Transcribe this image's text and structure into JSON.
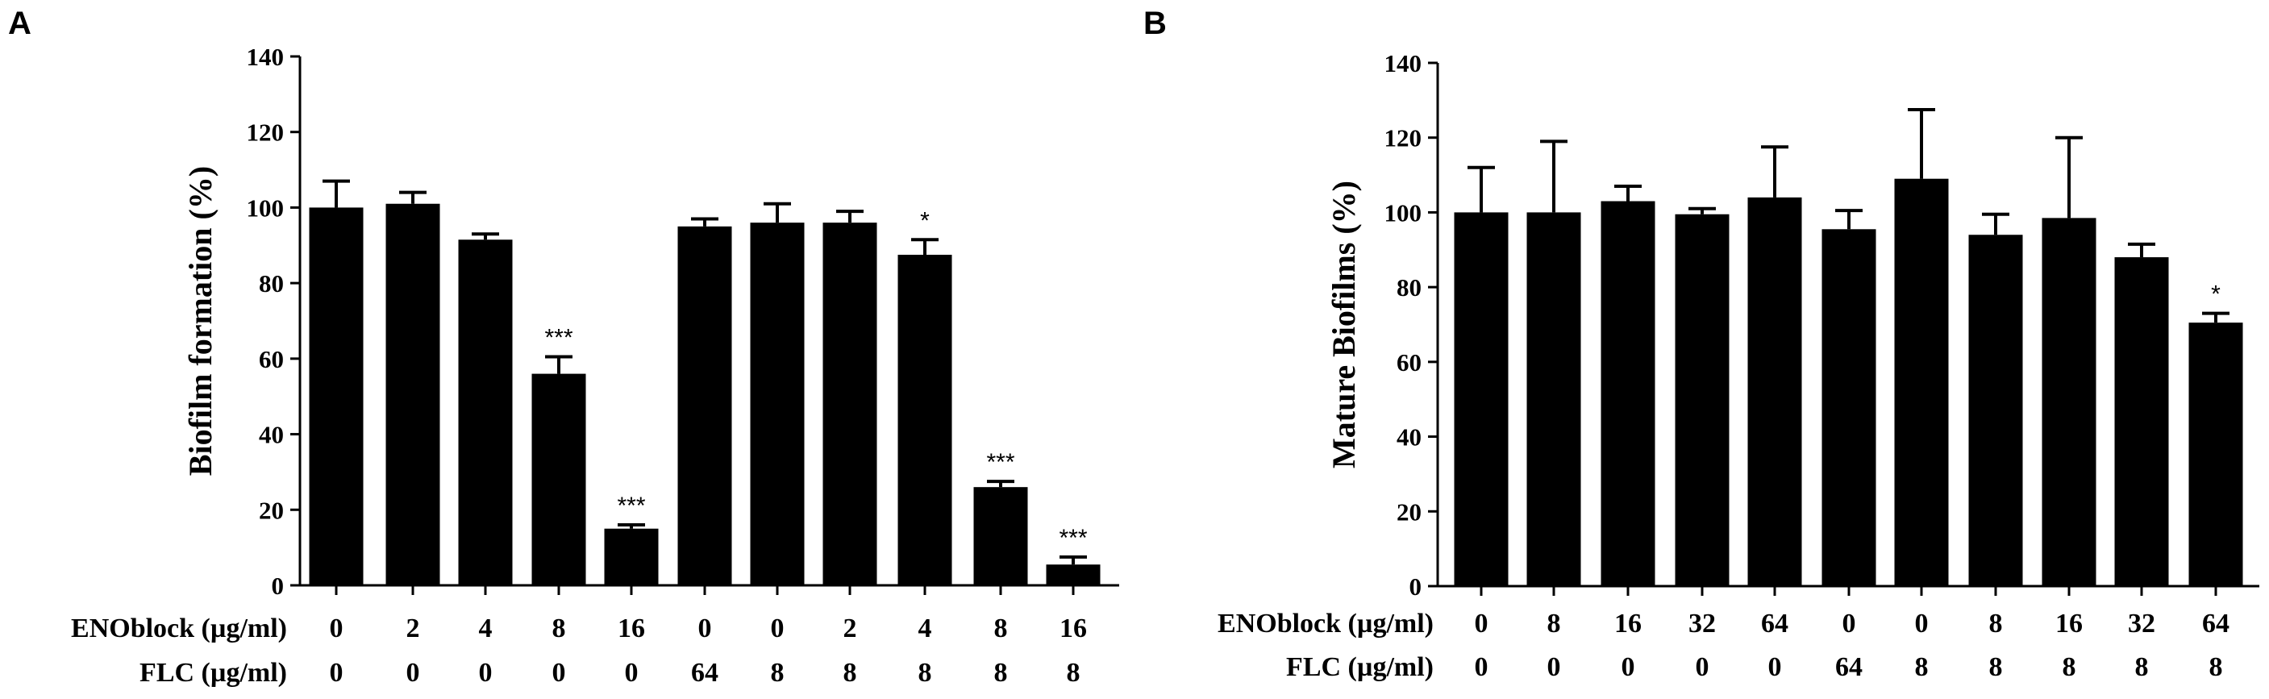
{
  "chart_data": [
    {
      "type": "bar",
      "panel_label": "A",
      "ylabel": "Biofilm formation (%)",
      "ylim": [
        0,
        140
      ],
      "yticks": [
        0,
        20,
        40,
        60,
        80,
        100,
        120,
        140
      ],
      "values": [
        100,
        101,
        91.5,
        56,
        15,
        95,
        96,
        96,
        87.5,
        26,
        5.5
      ],
      "errors": [
        7,
        3,
        1.5,
        4.5,
        1,
        2,
        5,
        3,
        4,
        1.5,
        2
      ],
      "significance": [
        "",
        "",
        "",
        "***",
        "***",
        "",
        "",
        "",
        "*",
        "***",
        "***"
      ],
      "rows": [
        {
          "label": "ENOblock (µg/ml)",
          "values": [
            "0",
            "2",
            "4",
            "8",
            "16",
            "0",
            "0",
            "2",
            "4",
            "8",
            "16"
          ]
        },
        {
          "label": "FLC (µg/ml)",
          "values": [
            "0",
            "0",
            "0",
            "0",
            "0",
            "64",
            "8",
            "8",
            "8",
            "8",
            "8"
          ]
        }
      ],
      "grid": false
    },
    {
      "type": "bar",
      "panel_label": "B",
      "ylabel": "Mature Biofilms (%)",
      "ylim": [
        0,
        140
      ],
      "yticks": [
        0,
        20,
        40,
        60,
        80,
        100,
        120,
        140
      ],
      "values": [
        100,
        100,
        103,
        99.5,
        104,
        95.5,
        109,
        94,
        98.5,
        88,
        70.5
      ],
      "errors": [
        12,
        19,
        4,
        1.5,
        13.5,
        5,
        18.5,
        5.5,
        21.5,
        3.5,
        2.5
      ],
      "significance": [
        "",
        "",
        "",
        "",
        "",
        "",
        "",
        "",
        "",
        "",
        "*"
      ],
      "rows": [
        {
          "label": "ENOblock (µg/ml)",
          "values": [
            "0",
            "8",
            "16",
            "32",
            "64",
            "0",
            "0",
            "8",
            "16",
            "32",
            "64"
          ]
        },
        {
          "label": "FLC (µg/ml)",
          "values": [
            "0",
            "0",
            "0",
            "0",
            "0",
            "64",
            "8",
            "8",
            "8",
            "8",
            "8"
          ]
        }
      ],
      "grid": false
    }
  ]
}
